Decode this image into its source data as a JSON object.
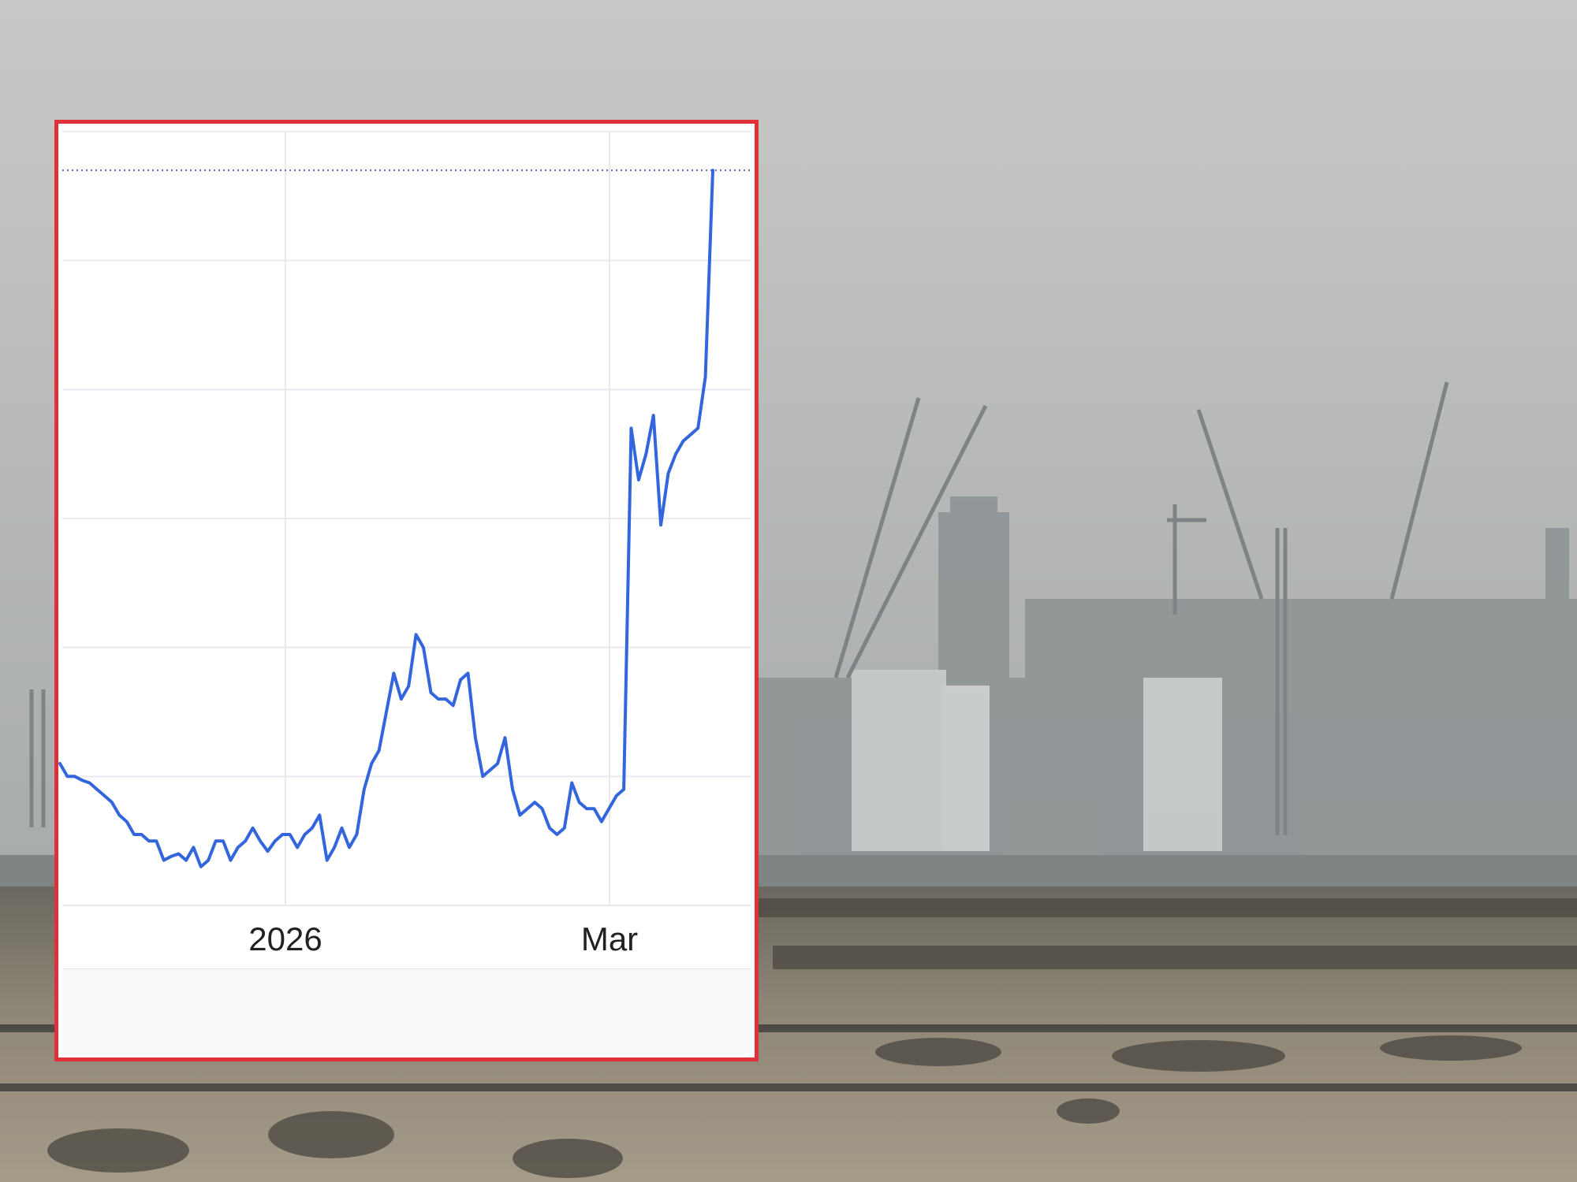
{
  "chart_data": {
    "type": "line",
    "title": "",
    "xlabel": "",
    "ylabel": "",
    "x_tick_labels": [
      "2026",
      "Mar"
    ],
    "grid": true,
    "legend": "none",
    "colors": {
      "line": "#3366dd",
      "frame": "#e0313a",
      "grid": "#e8eaed",
      "reference": "#5470c6"
    },
    "y_axis": {
      "labels_visible": false,
      "range": [
        0,
        6
      ]
    },
    "reference_line": {
      "y": 5.7,
      "style": "dotted"
    },
    "series": [
      {
        "values": [
          1.1,
          1.0,
          1.0,
          0.97,
          0.95,
          0.9,
          0.85,
          0.8,
          0.7,
          0.65,
          0.55,
          0.55,
          0.5,
          0.5,
          0.35,
          0.38,
          0.4,
          0.35,
          0.45,
          0.3,
          0.35,
          0.5,
          0.5,
          0.35,
          0.45,
          0.5,
          0.6,
          0.5,
          0.42,
          0.5,
          0.55,
          0.55,
          0.45,
          0.55,
          0.6,
          0.7,
          0.35,
          0.45,
          0.6,
          0.45,
          0.55,
          0.9,
          1.1,
          1.2,
          1.5,
          1.8,
          1.6,
          1.7,
          2.1,
          2.0,
          1.65,
          1.6,
          1.6,
          1.55,
          1.75,
          1.8,
          1.3,
          1.0,
          1.05,
          1.1,
          1.3,
          0.9,
          0.7,
          0.75,
          0.8,
          0.75,
          0.6,
          0.55,
          0.6,
          0.95,
          0.8,
          0.75,
          0.75,
          0.65,
          0.75,
          0.85,
          0.9,
          3.7,
          3.3,
          3.5,
          3.8,
          2.95,
          3.35,
          3.5,
          3.6,
          3.65,
          3.7,
          4.1,
          5.7
        ]
      }
    ]
  }
}
